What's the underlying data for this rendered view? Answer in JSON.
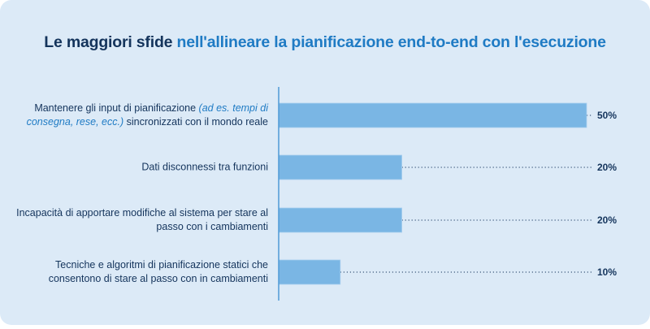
{
  "title": {
    "part1": "Le maggiori sfide ",
    "part2": "nell'allineare la pianificazione end-to-end con l'esecuzione"
  },
  "colors": {
    "bar": "#7ab6e4",
    "text": "#14345c",
    "accent": "#1f7bc4",
    "background": "#dceaf7"
  },
  "chart_data": {
    "type": "bar",
    "orientation": "horizontal",
    "title": "Le maggiori sfide nell'allineare la pianificazione end-to-end con l'esecuzione",
    "categories": [
      {
        "pre": "Mantenere gli input di pianificazione ",
        "italic": "(ad es. tempi di consegna, rese, ecc.)",
        "post": " sincronizzati con il mondo reale"
      },
      {
        "pre": "Dati disconnessi tra funzioni",
        "italic": "",
        "post": ""
      },
      {
        "pre": "Incapacità di apportare modifiche al sistema per stare al passo con i cambiamenti",
        "italic": "",
        "post": ""
      },
      {
        "pre": "Tecniche e algoritmi di pianificazione statici che consentono di stare al passo con in cambiamenti",
        "italic": "",
        "post": ""
      }
    ],
    "values": [
      50,
      20,
      20,
      10
    ],
    "value_labels": [
      "50%",
      "20%",
      "20%",
      "10%"
    ],
    "xlim": [
      0,
      50
    ],
    "unit": "%",
    "grid": false,
    "legend": "none"
  }
}
